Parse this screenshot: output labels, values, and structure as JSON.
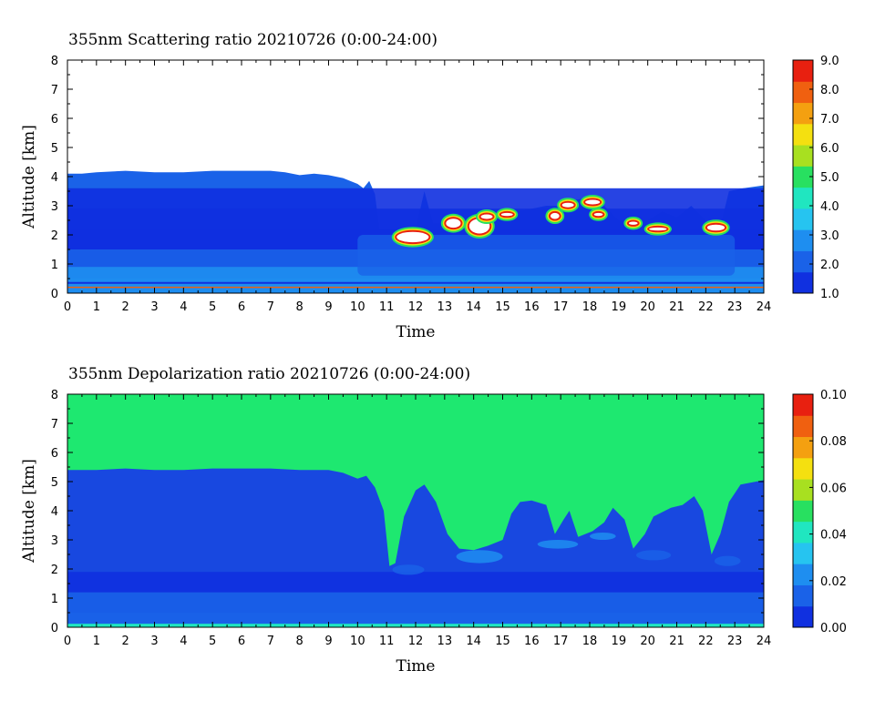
{
  "chart_data": [
    {
      "type": "heatmap",
      "title": "355nm Scattering ratio  20210726 (0:00-24:00)",
      "xlabel": "Time",
      "ylabel": "Altitude [km]",
      "xlim": [
        0,
        24
      ],
      "ylim": [
        0,
        8
      ],
      "x_ticks": [
        "0",
        "1",
        "2",
        "3",
        "4",
        "5",
        "6",
        "7",
        "8",
        "9",
        "10",
        "11",
        "12",
        "13",
        "14",
        "15",
        "16",
        "17",
        "18",
        "19",
        "20",
        "21",
        "22",
        "23",
        "24"
      ],
      "y_ticks": [
        "0",
        "1",
        "2",
        "3",
        "4",
        "5",
        "6",
        "7",
        "8"
      ],
      "colorbar": {
        "min": 1.0,
        "max": 9.0,
        "ticks": [
          "1.0",
          "2.0",
          "3.0",
          "4.0",
          "5.0",
          "6.0",
          "7.0",
          "8.0",
          "9.0"
        ],
        "colors": [
          "#1030e0",
          "#1a62e8",
          "#1e8ef0",
          "#26c4f0",
          "#20e6c0",
          "#28e060",
          "#a8e020",
          "#f4e010",
          "#f4a010",
          "#f06010",
          "#e82010"
        ]
      },
      "background": "#ffffff",
      "signal_top_km": [
        [
          0,
          4.1
        ],
        [
          0.5,
          4.1
        ],
        [
          1,
          4.15
        ],
        [
          2,
          4.2
        ],
        [
          3,
          4.15
        ],
        [
          4,
          4.15
        ],
        [
          5,
          4.2
        ],
        [
          6,
          4.2
        ],
        [
          7,
          4.2
        ],
        [
          7.5,
          4.15
        ],
        [
          8,
          4.05
        ],
        [
          8.5,
          4.1
        ],
        [
          9,
          4.05
        ],
        [
          9.5,
          3.95
        ],
        [
          10,
          3.75
        ],
        [
          10.2,
          3.6
        ],
        [
          10.4,
          3.85
        ],
        [
          10.6,
          3.4
        ],
        [
          10.8,
          1.8
        ],
        [
          11,
          1.9
        ],
        [
          11.5,
          2.0
        ],
        [
          12,
          2.2
        ],
        [
          12.3,
          3.5
        ],
        [
          12.6,
          2.4
        ],
        [
          13,
          2.4
        ],
        [
          13.5,
          2.5
        ],
        [
          14,
          2.6
        ],
        [
          14.5,
          2.7
        ],
        [
          15,
          2.7
        ],
        [
          15.5,
          2.8
        ],
        [
          16,
          2.9
        ],
        [
          16.5,
          3.0
        ],
        [
          17,
          3.0
        ],
        [
          17.5,
          3.2
        ],
        [
          18,
          3.3
        ],
        [
          18.5,
          3.0
        ],
        [
          19,
          2.5
        ],
        [
          19.5,
          2.4
        ],
        [
          20,
          2.5
        ],
        [
          20.5,
          2.8
        ],
        [
          21,
          2.6
        ],
        [
          21.5,
          3.0
        ],
        [
          22,
          2.5
        ],
        [
          22.5,
          2.3
        ],
        [
          22.8,
          3.5
        ],
        [
          23.3,
          3.6
        ],
        [
          24,
          3.7
        ]
      ],
      "layers_km": [
        {
          "level": 1.3,
          "top": 3.6
        },
        {
          "level": 1.5,
          "top": 2.9
        },
        {
          "level": 1.7,
          "top": 2.2
        },
        {
          "level": 2.0,
          "top": 1.5
        },
        {
          "level": 2.5,
          "top": 0.9
        },
        {
          "level": 3.0,
          "top": 0.5
        }
      ],
      "aerosol_patch": {
        "level": 2.3,
        "x_start": 10,
        "x_end": 23,
        "top": 2.0,
        "bottom": 0.6
      },
      "clouds": [
        {
          "x": 11.3,
          "y": 1.7,
          "w": 1.2,
          "h": 0.45
        },
        {
          "x": 13.0,
          "y": 2.2,
          "w": 0.6,
          "h": 0.4
        },
        {
          "x": 13.8,
          "y": 2.0,
          "w": 0.8,
          "h": 0.6
        },
        {
          "x": 14.2,
          "y": 2.5,
          "w": 0.5,
          "h": 0.25
        },
        {
          "x": 14.9,
          "y": 2.6,
          "w": 0.5,
          "h": 0.2
        },
        {
          "x": 16.6,
          "y": 2.5,
          "w": 0.4,
          "h": 0.3
        },
        {
          "x": 17.0,
          "y": 2.9,
          "w": 0.5,
          "h": 0.25
        },
        {
          "x": 17.8,
          "y": 3.0,
          "w": 0.6,
          "h": 0.25
        },
        {
          "x": 18.1,
          "y": 2.6,
          "w": 0.4,
          "h": 0.2
        },
        {
          "x": 19.3,
          "y": 2.3,
          "w": 0.4,
          "h": 0.2
        },
        {
          "x": 20.0,
          "y": 2.1,
          "w": 0.7,
          "h": 0.2
        },
        {
          "x": 22.0,
          "y": 2.1,
          "w": 0.7,
          "h": 0.3
        }
      ]
    },
    {
      "type": "heatmap",
      "title": "355nm Depolarization ratio  20210726 (0:00-24:00)",
      "xlabel": "Time",
      "ylabel": "Altitude [km]",
      "xlim": [
        0,
        24
      ],
      "ylim": [
        0,
        8
      ],
      "x_ticks": [
        "0",
        "1",
        "2",
        "3",
        "4",
        "5",
        "6",
        "7",
        "8",
        "9",
        "10",
        "11",
        "12",
        "13",
        "14",
        "15",
        "16",
        "17",
        "18",
        "19",
        "20",
        "21",
        "22",
        "23",
        "24"
      ],
      "y_ticks": [
        "0",
        "1",
        "2",
        "3",
        "4",
        "5",
        "6",
        "7",
        "8"
      ],
      "colorbar": {
        "min": 0.0,
        "max": 0.1,
        "ticks": [
          "0.00",
          "0.02",
          "0.04",
          "0.06",
          "0.08",
          "0.10"
        ],
        "colors": [
          "#1030e0",
          "#1a62e8",
          "#1e8ef0",
          "#26c4f0",
          "#20e6c0",
          "#28e060",
          "#a8e020",
          "#f4e010",
          "#f4a010",
          "#f06010",
          "#e82010"
        ]
      },
      "background_value": 0.04,
      "background": "#1ee870",
      "signal_top_km": [
        [
          0,
          5.4
        ],
        [
          1,
          5.4
        ],
        [
          2,
          5.45
        ],
        [
          3,
          5.4
        ],
        [
          4,
          5.4
        ],
        [
          5,
          5.45
        ],
        [
          6,
          5.45
        ],
        [
          7,
          5.45
        ],
        [
          8,
          5.4
        ],
        [
          9,
          5.4
        ],
        [
          9.5,
          5.3
        ],
        [
          10,
          5.1
        ],
        [
          10.3,
          5.2
        ],
        [
          10.6,
          4.8
        ],
        [
          10.9,
          4.0
        ],
        [
          11.1,
          2.1
        ],
        [
          11.3,
          2.2
        ],
        [
          11.6,
          3.8
        ],
        [
          12,
          4.7
        ],
        [
          12.3,
          4.9
        ],
        [
          12.7,
          4.3
        ],
        [
          13.1,
          3.2
        ],
        [
          13.5,
          2.7
        ],
        [
          14,
          2.65
        ],
        [
          14.5,
          2.8
        ],
        [
          15,
          3.0
        ],
        [
          15.3,
          3.9
        ],
        [
          15.6,
          4.3
        ],
        [
          16,
          4.35
        ],
        [
          16.5,
          4.2
        ],
        [
          16.8,
          3.2
        ],
        [
          17.1,
          3.7
        ],
        [
          17.3,
          4.0
        ],
        [
          17.6,
          3.1
        ],
        [
          18.1,
          3.3
        ],
        [
          18.5,
          3.6
        ],
        [
          18.8,
          4.1
        ],
        [
          19.2,
          3.7
        ],
        [
          19.5,
          2.7
        ],
        [
          19.9,
          3.2
        ],
        [
          20.2,
          3.8
        ],
        [
          20.8,
          4.1
        ],
        [
          21.2,
          4.2
        ],
        [
          21.6,
          4.5
        ],
        [
          21.9,
          4.0
        ],
        [
          22.2,
          2.5
        ],
        [
          22.5,
          3.2
        ],
        [
          22.8,
          4.3
        ],
        [
          23.2,
          4.9
        ],
        [
          24,
          5.05
        ]
      ],
      "layers_km": [
        {
          "level": 0.005,
          "top": 1.9
        },
        {
          "level": 0.01,
          "top": 1.2
        },
        {
          "level": 0.015,
          "top": 0.5
        }
      ],
      "bottom_strip": {
        "level": 0.04,
        "top": 0.12
      },
      "patches": [
        {
          "level": 0.018,
          "x": 11.2,
          "y": 1.8,
          "w": 1.1,
          "h": 0.35
        },
        {
          "level": 0.02,
          "x": 13.4,
          "y": 2.2,
          "w": 1.6,
          "h": 0.45
        },
        {
          "level": 0.02,
          "x": 16.2,
          "y": 2.7,
          "w": 1.4,
          "h": 0.3
        },
        {
          "level": 0.02,
          "x": 18.0,
          "y": 3.0,
          "w": 0.9,
          "h": 0.25
        },
        {
          "level": 0.018,
          "x": 19.6,
          "y": 2.3,
          "w": 1.2,
          "h": 0.35
        },
        {
          "level": 0.018,
          "x": 22.3,
          "y": 2.1,
          "w": 0.9,
          "h": 0.35
        }
      ]
    }
  ]
}
